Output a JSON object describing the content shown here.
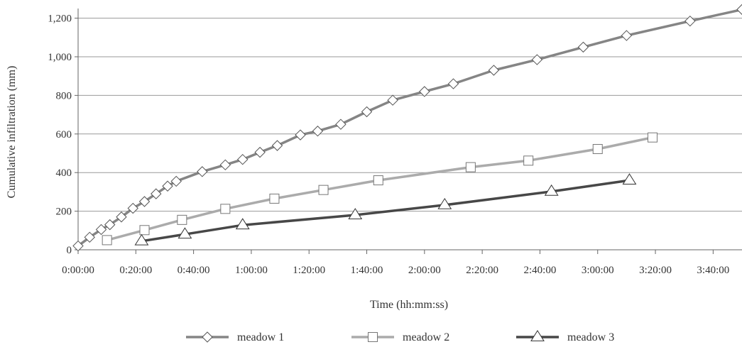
{
  "chart_data": {
    "type": "line",
    "title": "",
    "xlabel": "Time (hh:mm:ss)",
    "ylabel": "Cumulative infiltration (mm)",
    "x_unit": "seconds",
    "xlim": [
      0,
      13800
    ],
    "ylim": [
      0,
      1250
    ],
    "x_tick_values": [
      0,
      1200,
      2400,
      3600,
      4800,
      6000,
      7200,
      8400,
      9600,
      10800,
      12000,
      13200
    ],
    "x_tick_labels": [
      "0:00:00",
      "0:20:00",
      "0:40:00",
      "1:00:00",
      "1:20:00",
      "1:40:00",
      "2:00:00",
      "2:20:00",
      "2:40:00",
      "3:00:00",
      "3:20:00",
      "3:40:00"
    ],
    "y_tick_values": [
      0,
      200,
      400,
      600,
      800,
      1000,
      1200
    ],
    "y_tick_labels": [
      "0",
      "200",
      "400",
      "600",
      "800",
      "1,000",
      "1,200"
    ],
    "grid": "horizontal",
    "legend_position": "bottom",
    "series": [
      {
        "name": "meadow 1",
        "color": "#858585",
        "marker": "diamond",
        "points": [
          [
            0,
            20
          ],
          [
            240,
            65
          ],
          [
            480,
            105
          ],
          [
            660,
            130
          ],
          [
            900,
            170
          ],
          [
            1140,
            215
          ],
          [
            1380,
            250
          ],
          [
            1620,
            290
          ],
          [
            1860,
            330
          ],
          [
            2040,
            355
          ],
          [
            2580,
            405
          ],
          [
            3060,
            440
          ],
          [
            3420,
            468
          ],
          [
            3780,
            505
          ],
          [
            4140,
            540
          ],
          [
            4620,
            595
          ],
          [
            4980,
            615
          ],
          [
            5460,
            650
          ],
          [
            6000,
            715
          ],
          [
            6540,
            775
          ],
          [
            7200,
            820
          ],
          [
            7800,
            860
          ],
          [
            8640,
            930
          ],
          [
            9540,
            985
          ],
          [
            10500,
            1050
          ],
          [
            11400,
            1110
          ],
          [
            12720,
            1185
          ],
          [
            13800,
            1245
          ]
        ]
      },
      {
        "name": "meadow 2",
        "color": "#ababab",
        "marker": "square",
        "points": [
          [
            600,
            50
          ],
          [
            1380,
            102
          ],
          [
            2160,
            155
          ],
          [
            3060,
            212
          ],
          [
            4080,
            265
          ],
          [
            5100,
            310
          ],
          [
            6240,
            360
          ],
          [
            8160,
            428
          ],
          [
            9360,
            462
          ],
          [
            10800,
            522
          ],
          [
            11940,
            582
          ]
        ]
      },
      {
        "name": "meadow 3",
        "color": "#474747",
        "marker": "triangle",
        "points": [
          [
            1320,
            45
          ],
          [
            2220,
            80
          ],
          [
            3420,
            128
          ],
          [
            5760,
            180
          ],
          [
            7620,
            232
          ],
          [
            9840,
            302
          ],
          [
            11460,
            360
          ]
        ]
      }
    ]
  }
}
